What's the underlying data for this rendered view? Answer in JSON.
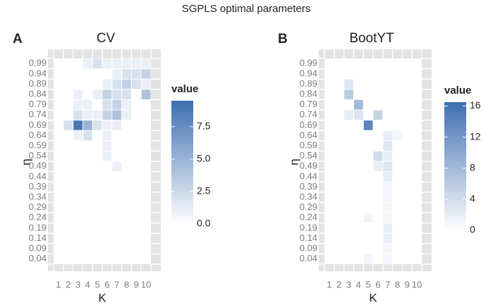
{
  "title": "SGPLS optimal parameters",
  "chart_data": [
    {
      "type": "heatmap",
      "tag": "A",
      "title": "CV",
      "xlabel": "K",
      "ylabel": "η",
      "xticks": [
        1,
        2,
        3,
        4,
        5,
        6,
        7,
        8,
        9,
        10
      ],
      "yticks": [
        0.04,
        0.09,
        0.14,
        0.19,
        0.24,
        0.29,
        0.34,
        0.39,
        0.44,
        0.49,
        0.54,
        0.59,
        0.64,
        0.69,
        0.74,
        0.79,
        0.84,
        0.89,
        0.94,
        0.99
      ],
      "x": [
        4,
        5,
        6,
        7,
        8,
        9,
        10,
        7,
        8,
        9,
        10,
        6,
        7,
        8,
        9,
        10,
        3,
        5,
        6,
        7,
        8,
        10,
        3,
        4,
        6,
        7,
        8,
        3,
        4,
        5,
        6,
        7,
        8,
        2,
        3,
        4,
        5,
        6,
        7,
        3,
        4,
        6,
        6,
        6,
        7
      ],
      "y": [
        0.99,
        0.99,
        0.99,
        0.99,
        0.99,
        0.99,
        0.99,
        0.94,
        0.94,
        0.94,
        0.94,
        0.89,
        0.89,
        0.89,
        0.89,
        0.89,
        0.84,
        0.84,
        0.84,
        0.84,
        0.84,
        0.84,
        0.79,
        0.79,
        0.79,
        0.79,
        0.79,
        0.74,
        0.74,
        0.74,
        0.74,
        0.74,
        0.74,
        0.69,
        0.69,
        0.69,
        0.69,
        0.69,
        0.69,
        0.64,
        0.64,
        0.64,
        0.59,
        0.54,
        0.49
      ],
      "values": [
        1,
        2,
        1,
        1,
        1,
        1,
        1,
        1,
        2,
        2,
        3,
        1,
        2,
        3,
        2,
        1,
        1,
        1,
        3,
        2,
        2,
        4,
        1,
        1,
        2,
        3,
        1,
        2,
        1,
        1,
        3,
        4,
        1,
        2,
        9,
        5,
        2,
        1,
        1,
        1,
        2,
        1,
        1,
        1,
        1
      ],
      "colorbar_title": "value",
      "clim": [
        0,
        9.5
      ],
      "cticks": [
        {
          "value": 0,
          "label": "0.0"
        },
        {
          "value": 2.5,
          "label": "2.5"
        },
        {
          "value": 5,
          "label": "5.0"
        },
        {
          "value": 7.5,
          "label": "7.5"
        }
      ],
      "colors": [
        "#ffffff",
        "#3f6fb0"
      ]
    },
    {
      "type": "heatmap",
      "tag": "B",
      "title": "BootYT",
      "xlabel": "K",
      "ylabel": "η",
      "xticks": [
        1,
        2,
        3,
        4,
        5,
        6,
        7,
        8,
        9,
        10
      ],
      "yticks": [
        0.04,
        0.09,
        0.14,
        0.19,
        0.24,
        0.29,
        0.34,
        0.39,
        0.44,
        0.49,
        0.54,
        0.59,
        0.64,
        0.69,
        0.74,
        0.79,
        0.84,
        0.89,
        0.94,
        0.99
      ],
      "x": [
        3,
        3,
        4,
        3,
        4,
        6,
        5,
        7,
        8,
        7,
        6,
        7,
        6,
        7,
        7,
        7,
        7,
        7,
        5,
        7,
        7,
        7,
        7,
        5,
        7
      ],
      "y": [
        0.89,
        0.84,
        0.79,
        0.74,
        0.74,
        0.74,
        0.69,
        0.64,
        0.64,
        0.59,
        0.54,
        0.54,
        0.49,
        0.49,
        0.44,
        0.39,
        0.34,
        0.29,
        0.24,
        0.24,
        0.19,
        0.14,
        0.09,
        0.04,
        0.04
      ],
      "values": [
        3,
        6,
        8,
        2,
        3,
        5,
        14,
        2,
        1,
        3,
        4,
        2,
        2,
        3,
        2,
        1,
        1,
        1,
        1,
        1,
        2,
        2,
        1,
        1,
        1
      ],
      "colorbar_title": "value",
      "clim": [
        0,
        16.5
      ],
      "cticks": [
        0,
        4,
        8,
        12,
        16
      ],
      "colors": [
        "#ffffff",
        "#3f6fb0"
      ]
    }
  ]
}
